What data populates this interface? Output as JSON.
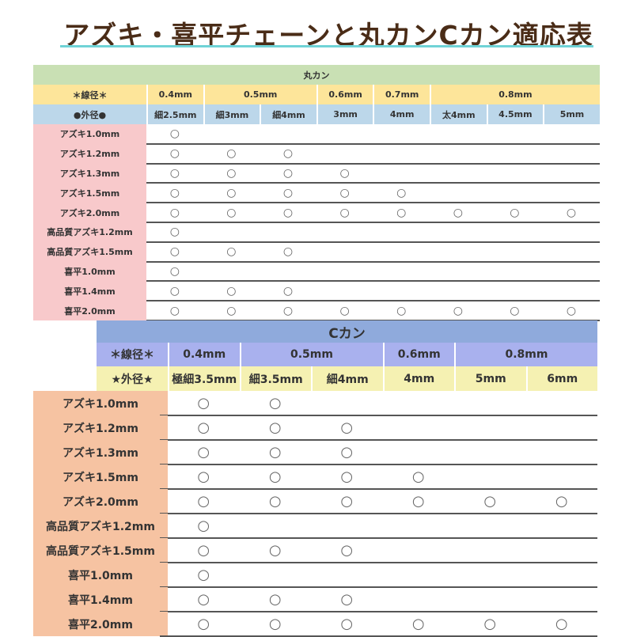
{
  "title": "アズキ・喜平チェーンと丸カンCカン適応表",
  "table1": {
    "name": "丸カン",
    "wire_label": "＊線径＊",
    "wire": [
      "0.4mm",
      "0.5mm",
      "0.6mm",
      "0.7mm",
      "0.8mm"
    ],
    "outer_label": "●外径●",
    "outer": [
      "細2.5mm",
      "細3mm",
      "細4mm",
      "3mm",
      "4mm",
      "太4mm",
      "4.5mm",
      "5mm"
    ],
    "rows": [
      {
        "label": "アズキ1.0mm",
        "marks": [
          "○",
          "",
          "",
          "",
          "",
          "",
          "",
          ""
        ]
      },
      {
        "label": "アズキ1.2mm",
        "marks": [
          "○",
          "○",
          "○",
          "",
          "",
          "",
          "",
          ""
        ]
      },
      {
        "label": "アズキ1.3mm",
        "marks": [
          "○",
          "○",
          "○",
          "○",
          "",
          "",
          "",
          ""
        ]
      },
      {
        "label": "アズキ1.5mm",
        "marks": [
          "○",
          "○",
          "○",
          "○",
          "○",
          "",
          "",
          ""
        ]
      },
      {
        "label": "アズキ2.0mm",
        "marks": [
          "○",
          "○",
          "○",
          "○",
          "○",
          "○",
          "○",
          "○"
        ]
      },
      {
        "label": "高品質アズキ1.2mm",
        "marks": [
          "○",
          "",
          "",
          "",
          "",
          "",
          "",
          ""
        ]
      },
      {
        "label": "高品質アズキ1.5mm",
        "marks": [
          "○",
          "○",
          "○",
          "",
          "",
          "",
          "",
          ""
        ]
      },
      {
        "label": "喜平1.0mm",
        "marks": [
          "○",
          "",
          "",
          "",
          "",
          "",
          "",
          ""
        ]
      },
      {
        "label": "喜平1.4mm",
        "marks": [
          "○",
          "○",
          "○",
          "",
          "",
          "",
          "",
          ""
        ]
      },
      {
        "label": "喜平2.0mm",
        "marks": [
          "○",
          "○",
          "○",
          "○",
          "○",
          "○",
          "○",
          "○"
        ]
      }
    ]
  },
  "table2": {
    "name": "Cカン",
    "wire_label": "＊線径＊",
    "wire": [
      "0.4mm",
      "0.5mm",
      "0.6mm",
      "0.8mm"
    ],
    "outer_label": "★外径★",
    "outer": [
      "極細3.5mm",
      "細3.5mm",
      "細4mm",
      "4mm",
      "5mm",
      "6mm"
    ],
    "rows": [
      {
        "label": "アズキ1.0mm",
        "marks": [
          "○",
          "○",
          "",
          "",
          "",
          ""
        ]
      },
      {
        "label": "アズキ1.2mm",
        "marks": [
          "○",
          "○",
          "○",
          "",
          "",
          ""
        ]
      },
      {
        "label": "アズキ1.3mm",
        "marks": [
          "○",
          "○",
          "○",
          "",
          "",
          ""
        ]
      },
      {
        "label": "アズキ1.5mm",
        "marks": [
          "○",
          "○",
          "○",
          "○",
          "",
          ""
        ]
      },
      {
        "label": "アズキ2.0mm",
        "marks": [
          "○",
          "○",
          "○",
          "○",
          "○",
          "○"
        ]
      },
      {
        "label": "高品質アズキ1.2mm",
        "marks": [
          "○",
          "",
          "",
          "",
          "",
          ""
        ]
      },
      {
        "label": "高品質アズキ1.5mm",
        "marks": [
          "○",
          "○",
          "○",
          "",
          "",
          ""
        ]
      },
      {
        "label": "喜平1.0mm",
        "marks": [
          "○",
          "",
          "",
          "",
          "",
          ""
        ]
      },
      {
        "label": "喜平1.4mm",
        "marks": [
          "○",
          "○",
          "○",
          "",
          "",
          ""
        ]
      },
      {
        "label": "喜平2.0mm",
        "marks": [
          "○",
          "○",
          "○",
          "○",
          "○",
          "○"
        ]
      }
    ]
  },
  "colors": {
    "title": "#4a2c17",
    "underline": "#6fd3d6",
    "t1_header": "#c9e0b4",
    "t1_wire": "#fde59a",
    "t1_outer": "#bcd7ea",
    "t1_label": "#f8c9cb",
    "t2_header": "#8faadc",
    "t2_wire": "#a9b1ee",
    "t2_outer": "#f5f1b2",
    "t2_label": "#f6c3a2"
  }
}
